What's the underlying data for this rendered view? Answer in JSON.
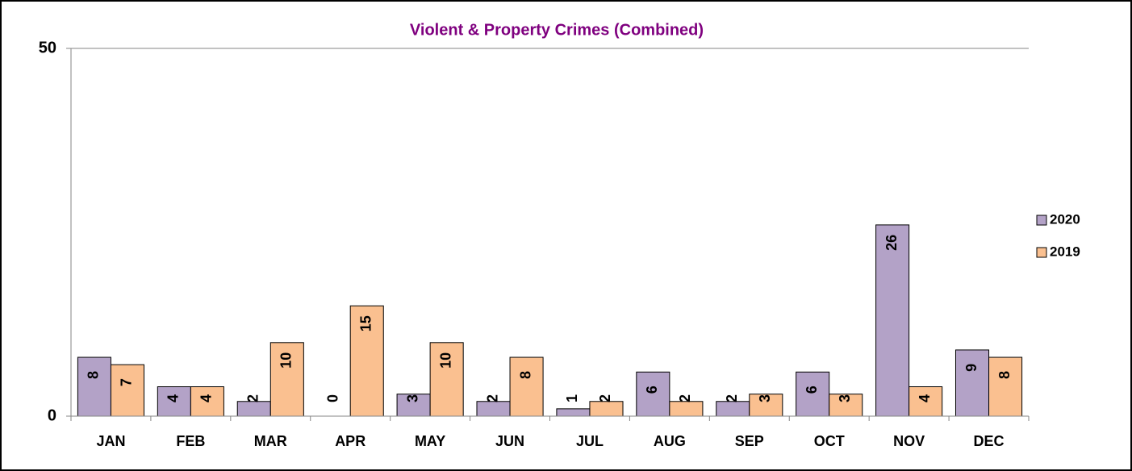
{
  "chart_data": {
    "type": "bar",
    "title": "Violent & Property Crimes (Combined)",
    "categories": [
      "JAN",
      "FEB",
      "MAR",
      "APR",
      "MAY",
      "JUN",
      "JUL",
      "AUG",
      "SEP",
      "OCT",
      "NOV",
      "DEC"
    ],
    "series": [
      {
        "name": "2020",
        "color": "#b3a2c7",
        "values": [
          8,
          4,
          2,
          0,
          3,
          2,
          1,
          6,
          2,
          6,
          26,
          9
        ]
      },
      {
        "name": "2019",
        "color": "#fac090",
        "values": [
          7,
          4,
          10,
          15,
          10,
          8,
          2,
          2,
          3,
          3,
          4,
          8
        ]
      }
    ],
    "ylim": [
      0,
      50
    ],
    "yticks": [
      0,
      50
    ],
    "grid": true,
    "legend": "right"
  }
}
